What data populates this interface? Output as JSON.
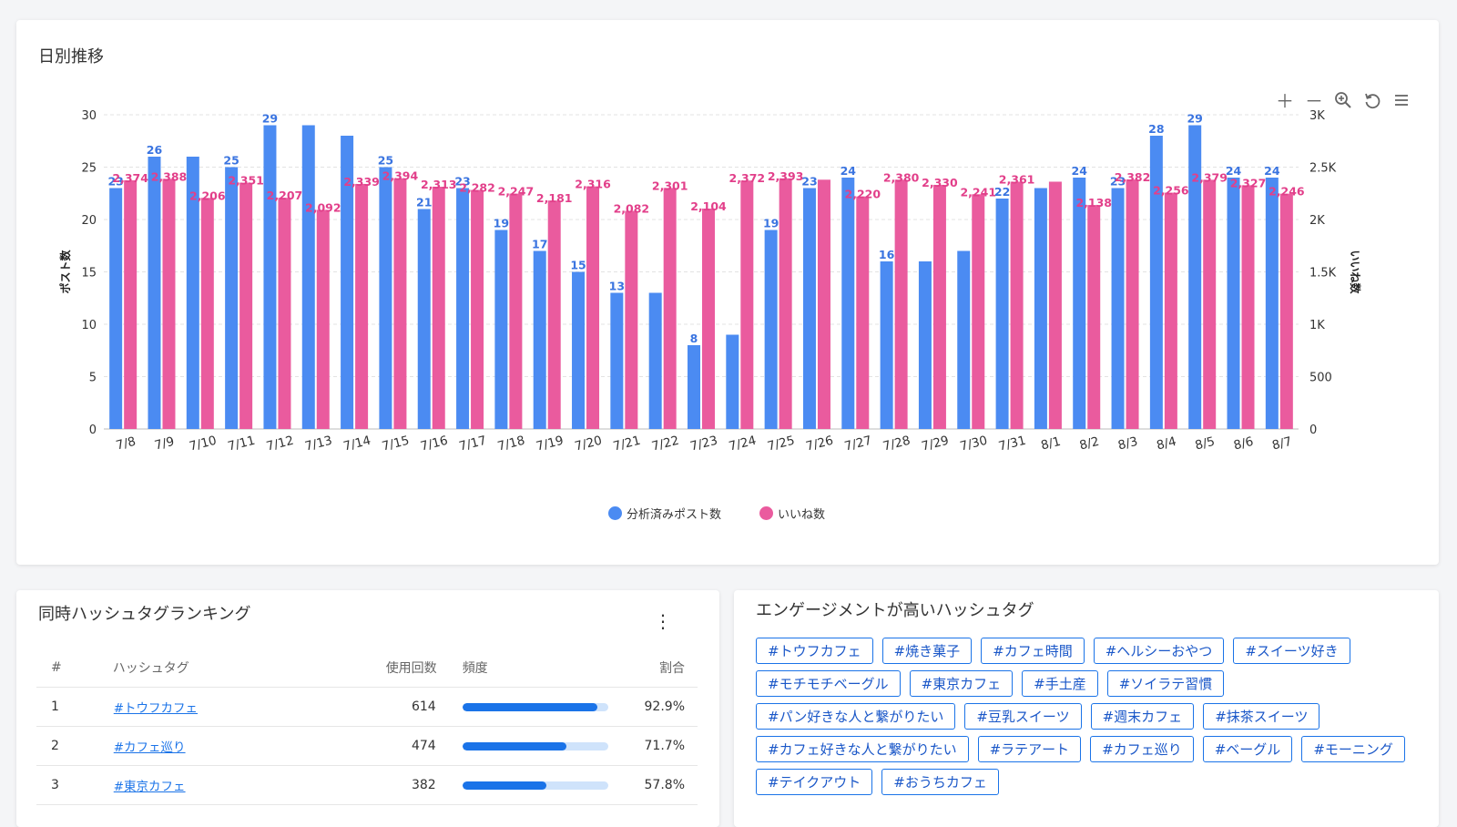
{
  "daily": {
    "title": "日別推移",
    "legend": {
      "posts": "分析済みポスト数",
      "likes": "いいね数"
    },
    "colors": {
      "posts": "#4b8bf2",
      "likes": "#ea5b9e",
      "posts_label": "#3a74e0",
      "likes_label": "#e23f8a"
    },
    "tools": [
      "plus-icon",
      "minus-icon",
      "zoom-in-icon",
      "reset-icon",
      "menu-icon"
    ]
  },
  "chart_data": {
    "type": "bar",
    "categories": [
      "7/8",
      "7/9",
      "7/10",
      "7/11",
      "7/12",
      "7/13",
      "7/14",
      "7/15",
      "7/16",
      "7/17",
      "7/18",
      "7/19",
      "7/20",
      "7/21",
      "7/22",
      "7/23",
      "7/24",
      "7/25",
      "7/26",
      "7/27",
      "7/28",
      "7/29",
      "7/30",
      "7/31",
      "8/1",
      "8/2",
      "8/3",
      "8/4",
      "8/5",
      "8/6",
      "8/7"
    ],
    "series": [
      {
        "name": "分析済みポスト数",
        "axis": "left",
        "values": [
          23,
          26,
          26,
          25,
          29,
          29,
          28,
          25,
          21,
          23,
          19,
          17,
          15,
          13,
          13,
          8,
          9,
          19,
          23,
          24,
          16,
          16,
          17,
          22,
          23,
          24,
          23,
          28,
          29,
          24,
          24
        ],
        "labels": [
          "23",
          "26",
          "",
          "25",
          "29",
          "",
          "",
          "25",
          "21",
          "23",
          "19",
          "17",
          "15",
          "13",
          "",
          "8",
          "",
          "19",
          "23",
          "24",
          "16",
          "",
          "",
          "22",
          "",
          "24",
          "23",
          "28",
          "29",
          "24",
          "24"
        ]
      },
      {
        "name": "いいね数",
        "axis": "right",
        "values": [
          2374,
          2388,
          2206,
          2351,
          2207,
          2092,
          2339,
          2394,
          2313,
          2282,
          2247,
          2181,
          2316,
          2082,
          2301,
          2104,
          2372,
          2393,
          2380,
          2220,
          2380,
          2330,
          2241,
          2361,
          2361,
          2138,
          2382,
          2256,
          2379,
          2327,
          2246
        ],
        "labels": [
          "2,374",
          "2,388",
          "2,206",
          "2,351",
          "2,207",
          "2,092",
          "2,339",
          "2,394",
          "2,313",
          "2,282",
          "2,247",
          "2,181",
          "2,316",
          "2,082",
          "2,301",
          "2,104",
          "2,372",
          "2,393",
          "",
          "2,220",
          "2,380",
          "2,330",
          "2,241",
          "2,361",
          "",
          "2,138",
          "2,382",
          "2,256",
          "2,379",
          "2,327",
          "2,246"
        ]
      }
    ],
    "y_left": {
      "label": "ポスト数",
      "ylim": [
        0,
        30
      ],
      "ticks": [
        "0",
        "5",
        "10",
        "15",
        "20",
        "25",
        "30"
      ]
    },
    "y_right": {
      "label": "いいね数",
      "ylim": [
        0,
        3000
      ],
      "ticks": [
        "0",
        "500",
        "1K",
        "1.5K",
        "2K",
        "2.5K",
        "3K"
      ]
    },
    "grid": true,
    "legend_position": "bottom"
  },
  "ranking": {
    "title": "同時ハッシュタグランキング",
    "columns": [
      "#",
      "ハッシュタグ",
      "使用回数",
      "頻度",
      "割合"
    ],
    "rows": [
      {
        "rank": "1",
        "tag": "#トウフカフェ",
        "count": "614",
        "freq": 0.929,
        "ratio": "92.9%"
      },
      {
        "rank": "2",
        "tag": "#カフェ巡り",
        "count": "474",
        "freq": 0.717,
        "ratio": "71.7%"
      },
      {
        "rank": "3",
        "tag": "#東京カフェ",
        "count": "382",
        "freq": 0.578,
        "ratio": "57.8%"
      }
    ]
  },
  "engagement": {
    "title": "エンゲージメントが高いハッシュタグ",
    "tags": [
      "#トウフカフェ",
      "#焼き菓子",
      "#カフェ時間",
      "#ヘルシーおやつ",
      "#スイーツ好き",
      "#モチモチベーグル",
      "#東京カフェ",
      "#手土産",
      "#ソイラテ習慣",
      "#パン好きな人と繋がりたい",
      "#豆乳スイーツ",
      "#週末カフェ",
      "#抹茶スイーツ",
      "#カフェ好きな人と繋がりたい",
      "#ラテアート",
      "#カフェ巡り",
      "#ベーグル",
      "#モーニング",
      "#テイクアウト",
      "#おうちカフェ"
    ]
  }
}
